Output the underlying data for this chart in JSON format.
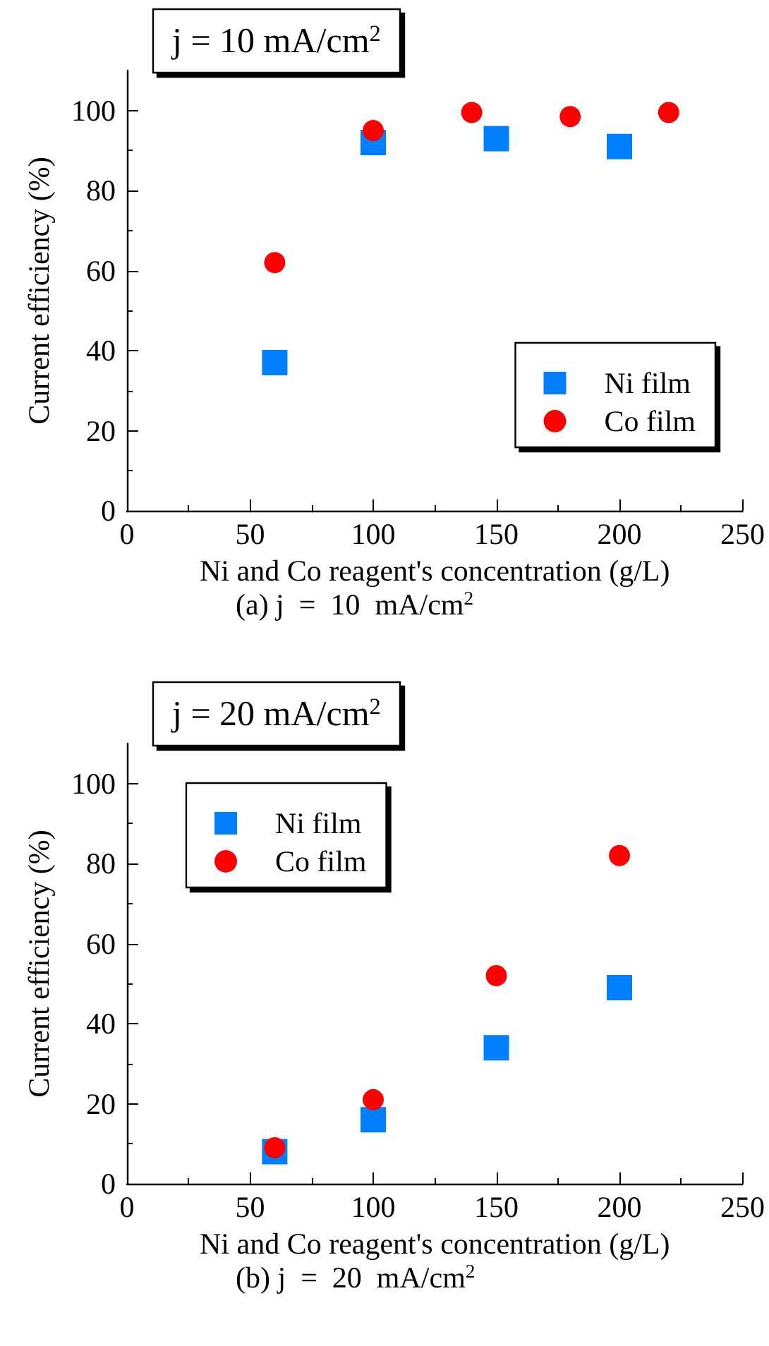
{
  "chart_data": [
    {
      "type": "scatter",
      "title": "j = 10 mA/cm$^{2}$",
      "xlabel": "Ni and Co reagent's concentration (g/L)",
      "ylabel": "Current efficiency (%)",
      "annotations": [
        "(a) j  =  10  mA/cm$^{2}$"
      ],
      "series": [
        {
          "name": "Ni film",
          "color": "#0080ff",
          "marker": "square",
          "x": [
            60,
            100,
            150,
            200
          ],
          "values": [
            37,
            92,
            93,
            91
          ]
        },
        {
          "name": "Co film",
          "color": "#ff0000",
          "marker": "circle",
          "x": [
            60,
            100,
            140,
            180,
            220
          ],
          "values": [
            62,
            95,
            99.5,
            98.5,
            99.5
          ]
        }
      ],
      "xlim": [
        0,
        250
      ],
      "xticks": [
        0,
        50,
        100,
        150,
        200,
        250
      ],
      "ylim": [
        0,
        110
      ],
      "yticks": [
        0,
        20,
        40,
        60,
        80,
        100
      ],
      "grid": false,
      "legend": "bottom right"
    },
    {
      "type": "scatter",
      "title": "j = 20 mA/cm$^{2}$",
      "xlabel": "Ni and Co reagent's concentration (g/L)",
      "ylabel": "Current efficiency (%)",
      "annotations": [
        "(b) j  =  20  mA/cm$^{2}$"
      ],
      "series": [
        {
          "name": "Ni film",
          "color": "#0080ff",
          "marker": "square",
          "x": [
            60,
            100,
            150,
            200
          ],
          "values": [
            8,
            16,
            34,
            49
          ]
        },
        {
          "name": "Co film",
          "color": "#ff0000",
          "marker": "circle",
          "x": [
            60,
            100,
            150,
            200
          ],
          "values": [
            9,
            21,
            52,
            82
          ]
        }
      ],
      "xlim": [
        0,
        250
      ],
      "xticks": [
        0,
        50,
        100,
        150,
        200,
        250
      ],
      "ylim": [
        0,
        110
      ],
      "yticks": [
        0,
        20,
        40,
        60,
        80,
        100
      ],
      "grid": false,
      "legend": "top left"
    }
  ]
}
